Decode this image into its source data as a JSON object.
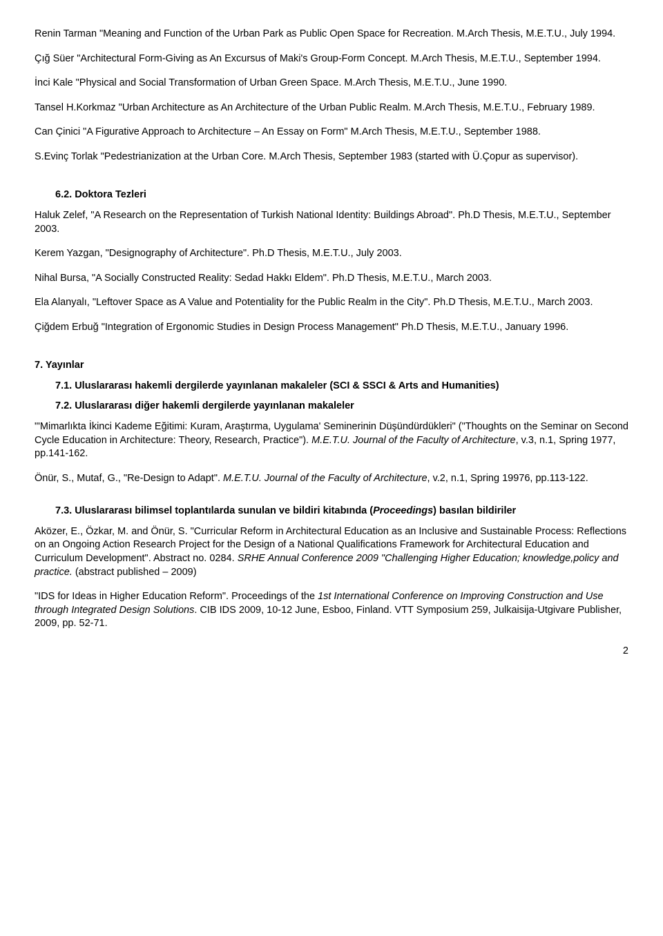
{
  "p1": "Renin Tarman \"Meaning and Function of the Urban Park as Public Open Space for Recreation. M.Arch Thesis, M.E.T.U., July 1994.",
  "p2": "Çığ Süer \"Architectural Form-Giving as An Excursus of Maki's Group-Form Concept. M.Arch Thesis, M.E.T.U., September 1994.",
  "p3": "İnci Kale \"Physical and Social Transformation of Urban Green Space. M.Arch Thesis, M.E.T.U., June 1990.",
  "p4": "Tansel H.Korkmaz \"Urban Architecture as An Architecture of the Urban Public Realm. M.Arch Thesis, M.E.T.U., February 1989.",
  "p5": "Can Çinici \"A Figurative Approach to Architecture – An Essay on Form\" M.Arch Thesis, M.E.T.U., September 1988.",
  "p6": "S.Evinç Torlak \"Pedestrianization at the Urban Core. M.Arch Thesis, September 1983 (started with Ü.Çopur as supervisor).",
  "h62": "6.2.  Doktora Tezleri",
  "p7": "Haluk Zelef, \"A Research on the Representation of Turkish National Identity: Buildings Abroad\". Ph.D Thesis, M.E.T.U., September 2003.",
  "p8": "Kerem Yazgan, \"Designography of Architecture\". Ph.D Thesis, M.E.T.U., July 2003.",
  "p9": "Nihal Bursa, \"A Socially Constructed Reality: Sedad Hakkı Eldem\". Ph.D Thesis, M.E.T.U., March 2003.",
  "p10": "Ela Alanyalı, \"Leftover Space as A Value and Potentiality for the Public Realm in the City\". Ph.D Thesis, M.E.T.U., March 2003.",
  "p11": "Çiğdem Erbuğ \"Integration of Ergonomic Studies in Design Process Management\" Ph.D Thesis, M.E.T.U., January 1996.",
  "h7": "7.     Yayınlar",
  "h71": "7.1. Uluslararası hakemli dergilerde yayınlanan makaleler (SCI & SSCI & Arts and Humanities)",
  "h72": "7.2. Uluslararası diğer hakemli dergilerde yayınlanan makaleler",
  "p12a": "\"'Mimarlıkta İkinci Kademe Eğitimi: Kuram, Araştırma, Uygulama' Seminerinin Düşündürdükleri\" (\"Thoughts on the Seminar on Second Cycle Education in Architecture: Theory, Research, Practice\"). ",
  "p12b": "M.E.T.U. Journal of the Faculty of Architecture",
  "p12c": ", v.3, n.1, Spring 1977, pp.141-162.",
  "p13a": "Önür, S., Mutaf, G., \"Re-Design to Adapt\". ",
  "p13b": "M.E.T.U. Journal of the Faculty of Architecture",
  "p13c": ", v.2, n.1, Spring 19976, pp.113-122.",
  "h73a": "7.3. Uluslararası bilimsel toplantılarda sunulan ve bildiri kitabında (",
  "h73b": "Proceedings",
  "h73c": ") basılan bildiriler",
  "p14a": "Aközer, E., Özkar, M. and Önür, S. \"Curricular Reform in Architectural Education as an Inclusive and Sustainable Process: Reflections on an Ongoing Action Research Project for the Design of a National Qualifications Framework for Architectural Education and Curriculum Development\". Abstract no. 0284. ",
  "p14b": "SRHE Annual Conference 2009 \"Challenging Higher Education; knowledge,policy and practice.",
  "p14c": " (abstract published – 2009)",
  "p15a": "\"IDS for Ideas in Higher Education Reform\". Proceedings of the ",
  "p15b": "1st International Conference on Improving Construction and Use through Integrated Design Solutions",
  "p15c": ". CIB IDS 2009, 10-12 June, Esboo, Finland. VTT Symposium 259, Julkaisija-Utgivare Publisher, 2009, pp. 52-71.",
  "pageNum": "2"
}
